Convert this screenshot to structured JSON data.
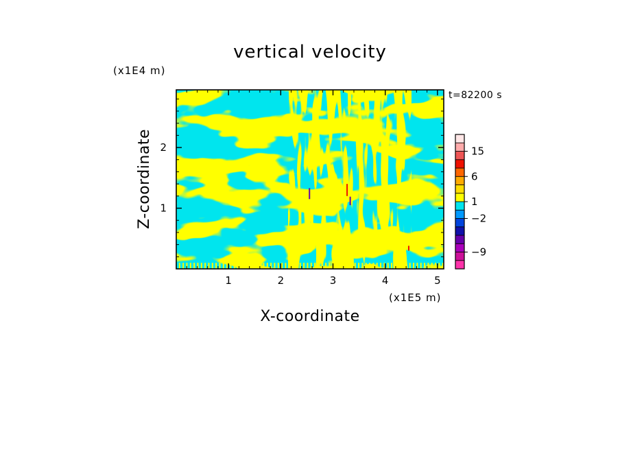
{
  "chart_data": {
    "type": "heatmap",
    "title": "vertical velocity",
    "xlabel": "X-coordinate",
    "ylabel": "Z-coordinate",
    "x_unit": "(x1E5 m)",
    "y_unit": "(x1E4 m)",
    "timestamp": "t=82200 s",
    "xlim": [
      0,
      5.12
    ],
    "ylim": [
      0,
      2.95
    ],
    "x_ticks": [
      {
        "value": 1,
        "label": "1"
      },
      {
        "value": 2,
        "label": "2"
      },
      {
        "value": 3,
        "label": "3"
      },
      {
        "value": 4,
        "label": "4"
      },
      {
        "value": 5,
        "label": "5"
      }
    ],
    "y_ticks": [
      {
        "value": 1,
        "label": "1"
      },
      {
        "value": 2,
        "label": "2"
      }
    ],
    "colorbar": {
      "levels": [
        {
          "color": "#ff33aa"
        },
        {
          "color": "#cc1199"
        },
        {
          "color": "#aa00bb"
        },
        {
          "color": "#6600aa"
        },
        {
          "color": "#1111aa"
        },
        {
          "color": "#0044dd"
        },
        {
          "color": "#0099ff"
        },
        {
          "color": "#00e5ee"
        },
        {
          "color": "#ffff00"
        },
        {
          "color": "#ffdd00"
        },
        {
          "color": "#ffaa00"
        },
        {
          "color": "#ff6600"
        },
        {
          "color": "#ee1100"
        },
        {
          "color": "#ee5555"
        },
        {
          "color": "#ffaaaa"
        },
        {
          "color": "#ffe6e6"
        }
      ],
      "labels": [
        {
          "index": 2,
          "label": "-9"
        },
        {
          "index": 6,
          "label": "-2"
        },
        {
          "index": 8,
          "label": "1"
        },
        {
          "index": 11,
          "label": "6"
        },
        {
          "index": 14,
          "label": "15"
        }
      ]
    },
    "field_colors": {
      "positive": "#ffff00",
      "negative": "#00e5ee",
      "strong_up": "#ee1100",
      "strong_down": "#6600aa"
    }
  }
}
